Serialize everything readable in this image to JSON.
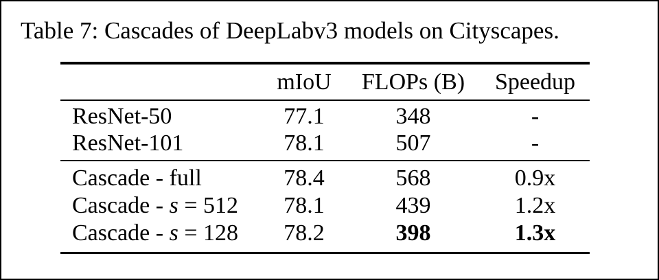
{
  "caption": "Table 7: Cascades of DeepLabv3 models on Cityscapes.",
  "table": {
    "columns": [
      "",
      "mIoU",
      "FLOPs (B)",
      "Speedup"
    ],
    "rows": [
      {
        "label_prefix": "ResNet-50",
        "label_var": "",
        "label_suffix": "",
        "miou": "77.1",
        "flops": "348",
        "speedup": "-"
      },
      {
        "label_prefix": "ResNet-101",
        "label_var": "",
        "label_suffix": "",
        "miou": "78.1",
        "flops": "507",
        "speedup": "-"
      },
      {
        "label_prefix": "Cascade - full",
        "label_var": "",
        "label_suffix": "",
        "miou": "78.4",
        "flops": "568",
        "speedup": "0.9x"
      },
      {
        "label_prefix": "Cascade - ",
        "label_var": "s",
        "label_suffix": " = 512",
        "miou": "78.1",
        "flops": "439",
        "speedup": "1.2x"
      },
      {
        "label_prefix": "Cascade - ",
        "label_var": "s",
        "label_suffix": " = 128",
        "miou": "78.2",
        "flops": "398",
        "speedup": "1.3x"
      }
    ]
  },
  "colors": {
    "text": "#000000",
    "background": "#ffffff",
    "frame_border": "#000000",
    "rule": "#000000"
  }
}
